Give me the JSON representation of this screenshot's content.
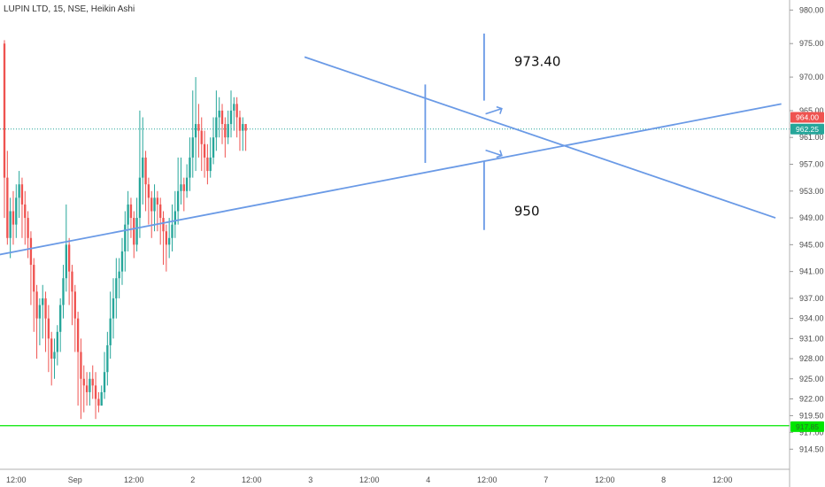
{
  "chart_data": {
    "type": "candlestick",
    "title": "LUPIN LTD, 15, NSE, Heikin Ashi",
    "ylim": [
      911.5,
      981.5
    ],
    "y_ticks": [
      {
        "label": "980.00",
        "v": 980
      },
      {
        "label": "975.00",
        "v": 975
      },
      {
        "label": "970.00",
        "v": 970
      },
      {
        "label": "965.00",
        "v": 965
      },
      {
        "label": "961.00",
        "v": 961
      },
      {
        "label": "957.00",
        "v": 957
      },
      {
        "label": "953.00",
        "v": 953
      },
      {
        "label": "949.00",
        "v": 949
      },
      {
        "label": "945.00",
        "v": 945
      },
      {
        "label": "941.00",
        "v": 941
      },
      {
        "label": "937.00",
        "v": 937
      },
      {
        "label": "934.00",
        "v": 934
      },
      {
        "label": "931.00",
        "v": 931
      },
      {
        "label": "928.00",
        "v": 928
      },
      {
        "label": "925.00",
        "v": 925
      },
      {
        "label": "922.00",
        "v": 922
      },
      {
        "label": "919.50",
        "v": 919.5
      },
      {
        "label": "917.00",
        "v": 917
      },
      {
        "label": "914.50",
        "v": 914.5
      }
    ],
    "x_ticks": [
      {
        "label": "12:00",
        "i": 4
      },
      {
        "label": "Sep",
        "i": 24
      },
      {
        "label": "12:00",
        "i": 44
      },
      {
        "label": "2",
        "i": 64
      },
      {
        "label": "12:00",
        "i": 84
      },
      {
        "label": "3",
        "i": 104
      },
      {
        "label": "12:00",
        "i": 124
      },
      {
        "label": "4",
        "i": 144
      },
      {
        "label": "12:00",
        "i": 164
      },
      {
        "label": "7",
        "i": 184
      },
      {
        "label": "12:00",
        "i": 204
      },
      {
        "label": "8",
        "i": 224
      },
      {
        "label": "12:00",
        "i": 244
      }
    ],
    "x_range": [
      0,
      265
    ],
    "candles": [
      [
        975,
        955,
        975.5,
        949
      ],
      [
        955,
        946,
        959,
        945
      ],
      [
        946,
        950,
        952,
        943
      ],
      [
        950,
        948,
        953,
        945
      ],
      [
        948,
        952,
        954,
        946
      ],
      [
        952,
        954,
        956,
        949
      ],
      [
        954,
        951,
        955,
        946
      ],
      [
        951,
        949,
        953,
        945
      ],
      [
        949,
        946,
        950,
        943
      ],
      [
        946,
        942,
        947,
        936
      ],
      [
        942,
        938,
        943,
        932
      ],
      [
        938,
        934,
        939,
        928
      ],
      [
        934,
        936,
        937,
        930
      ],
      [
        936,
        937,
        939,
        931
      ],
      [
        937,
        934,
        938,
        929
      ],
      [
        934,
        931,
        936,
        926
      ],
      [
        931,
        928,
        932,
        924
      ],
      [
        928,
        929,
        931,
        925
      ],
      [
        929,
        932,
        933,
        927
      ],
      [
        932,
        936,
        937,
        929
      ],
      [
        936,
        940,
        942,
        934
      ],
      [
        940,
        945,
        951,
        938
      ],
      [
        945,
        941,
        946,
        936
      ],
      [
        941,
        938,
        942,
        933
      ],
      [
        938,
        934,
        939,
        929
      ],
      [
        934,
        929,
        935,
        921
      ],
      [
        929,
        925,
        931,
        919
      ],
      [
        925,
        924,
        927,
        920
      ],
      [
        924,
        923,
        926,
        921
      ],
      [
        923,
        925,
        926,
        921
      ],
      [
        925,
        924,
        927,
        922
      ],
      [
        924,
        922,
        926,
        919
      ],
      [
        922,
        921,
        923,
        920
      ],
      [
        921,
        923,
        924,
        921
      ],
      [
        923,
        926,
        929,
        922
      ],
      [
        926,
        930,
        932,
        924
      ],
      [
        930,
        934,
        938,
        928
      ],
      [
        934,
        937,
        940,
        931
      ],
      [
        937,
        940,
        943,
        934
      ],
      [
        940,
        941,
        943,
        937
      ],
      [
        941,
        944,
        946,
        939
      ],
      [
        944,
        948,
        950,
        941
      ],
      [
        948,
        951,
        953,
        944
      ],
      [
        951,
        949,
        952,
        946
      ],
      [
        949,
        945,
        950,
        943
      ],
      [
        945,
        949,
        952,
        944
      ],
      [
        949,
        955,
        965,
        946
      ],
      [
        955,
        958,
        964,
        951
      ],
      [
        958,
        954,
        959,
        950
      ],
      [
        954,
        952,
        955,
        948
      ],
      [
        952,
        950,
        953,
        946
      ],
      [
        950,
        952,
        954,
        947
      ],
      [
        952,
        951,
        953,
        947
      ],
      [
        951,
        949,
        952,
        945
      ],
      [
        949,
        947,
        950,
        942
      ],
      [
        947,
        945,
        948,
        941
      ],
      [
        945,
        946,
        949,
        943
      ],
      [
        946,
        948,
        951,
        944
      ],
      [
        948,
        950,
        953,
        946
      ],
      [
        950,
        953,
        958,
        948
      ],
      [
        953,
        954,
        958,
        951
      ],
      [
        954,
        953,
        955,
        950
      ],
      [
        953,
        955,
        957,
        952
      ],
      [
        955,
        958,
        961,
        953
      ],
      [
        958,
        961,
        968,
        955
      ],
      [
        961,
        963,
        970,
        956
      ],
      [
        963,
        962,
        966,
        958
      ],
      [
        962,
        960,
        964,
        956
      ],
      [
        960,
        958,
        962,
        955
      ],
      [
        958,
        956,
        960,
        954
      ],
      [
        956,
        958,
        961,
        955
      ],
      [
        958,
        961,
        964,
        957
      ],
      [
        961,
        964,
        968,
        959
      ],
      [
        964,
        965,
        967,
        961
      ],
      [
        965,
        963,
        966,
        960
      ],
      [
        963,
        961,
        964,
        958
      ],
      [
        961,
        963,
        965,
        960
      ],
      [
        963,
        965,
        968,
        961
      ],
      [
        965,
        966,
        967,
        962
      ],
      [
        966,
        964,
        967,
        961
      ],
      [
        964,
        962,
        965,
        959
      ],
      [
        962,
        963,
        964,
        959
      ],
      [
        963,
        962,
        963,
        959
      ]
    ],
    "lines": [
      {
        "name": "upper-trendline",
        "x1": -2,
        "y1": 943.5,
        "x2": 264,
        "y2": 966.0,
        "tip": "x"
      },
      {
        "name": "lower-trendline",
        "x1": 102,
        "y1": 973.0,
        "x2": 262,
        "y2": 949.0
      }
    ],
    "horizontal_line": {
      "v": 918,
      "color": "#00e600"
    },
    "annotations": [
      {
        "text": "973.40",
        "v": 972.3,
        "i": 163
      },
      {
        "text": "950",
        "v": 950.0,
        "i": 163
      }
    ],
    "price_badges": [
      {
        "label": "964.00",
        "v": 964.0,
        "color": "#ef5350"
      },
      {
        "label": "962.25",
        "v": 962.25,
        "color": "#26a69a"
      },
      {
        "label": "917.85",
        "v": 917.85,
        "color": "#00e600",
        "text_color": "#2a6b2a"
      }
    ],
    "current_price_v": 962.25,
    "colors": {
      "up": "#26a69a",
      "down": "#ef5350",
      "drawing": "#6a9ae6",
      "axis_text": "#4a4a4a"
    }
  }
}
